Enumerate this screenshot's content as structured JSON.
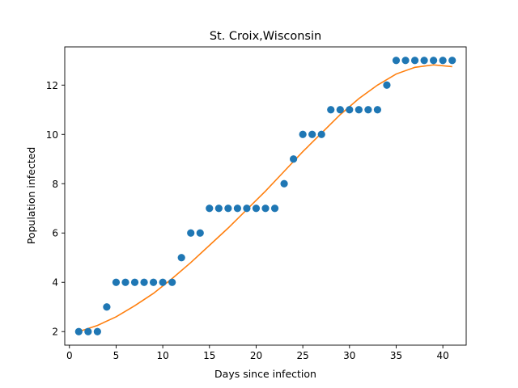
{
  "chart_data": {
    "type": "scatter",
    "title": "St. Croix,Wisconsin",
    "xlabel": "Days since infection",
    "ylabel": "Population infected",
    "xlim": [
      -0.5,
      42.5
    ],
    "ylim": [
      1.45,
      13.55
    ],
    "xticks": [
      0,
      5,
      10,
      15,
      20,
      25,
      30,
      35,
      40
    ],
    "yticks": [
      2,
      4,
      6,
      8,
      10,
      12
    ],
    "grid": false,
    "legend": "none",
    "series": [
      {
        "type": "scatter",
        "color": "#1f77b4",
        "x": [
          1,
          2,
          3,
          4,
          5,
          6,
          7,
          8,
          9,
          10,
          11,
          12,
          13,
          14,
          15,
          16,
          17,
          18,
          19,
          20,
          21,
          22,
          23,
          24,
          25,
          26,
          27,
          28,
          29,
          30,
          31,
          32,
          33,
          34,
          35,
          36,
          37,
          38,
          39,
          40,
          41
        ],
        "y": [
          2,
          2,
          2,
          3,
          4,
          4,
          4,
          4,
          4,
          4,
          4,
          5,
          6,
          6,
          7,
          7,
          7,
          7,
          7,
          7,
          7,
          7,
          8,
          9,
          10,
          10,
          10,
          11,
          11,
          11,
          11,
          11,
          11,
          12,
          13,
          13,
          13,
          13,
          13,
          13,
          13
        ]
      },
      {
        "type": "line",
        "color": "#ff7f0e",
        "x": [
          1,
          3,
          5,
          7,
          9,
          11,
          13,
          15,
          17,
          19,
          21,
          23,
          25,
          27,
          29,
          31,
          33,
          35,
          37,
          39,
          41
        ],
        "y": [
          2.0,
          2.25,
          2.6,
          3.05,
          3.55,
          4.15,
          4.8,
          5.5,
          6.2,
          6.95,
          7.7,
          8.5,
          9.3,
          10.05,
          10.8,
          11.45,
          12.0,
          12.45,
          12.72,
          12.82,
          12.75
        ]
      }
    ]
  }
}
